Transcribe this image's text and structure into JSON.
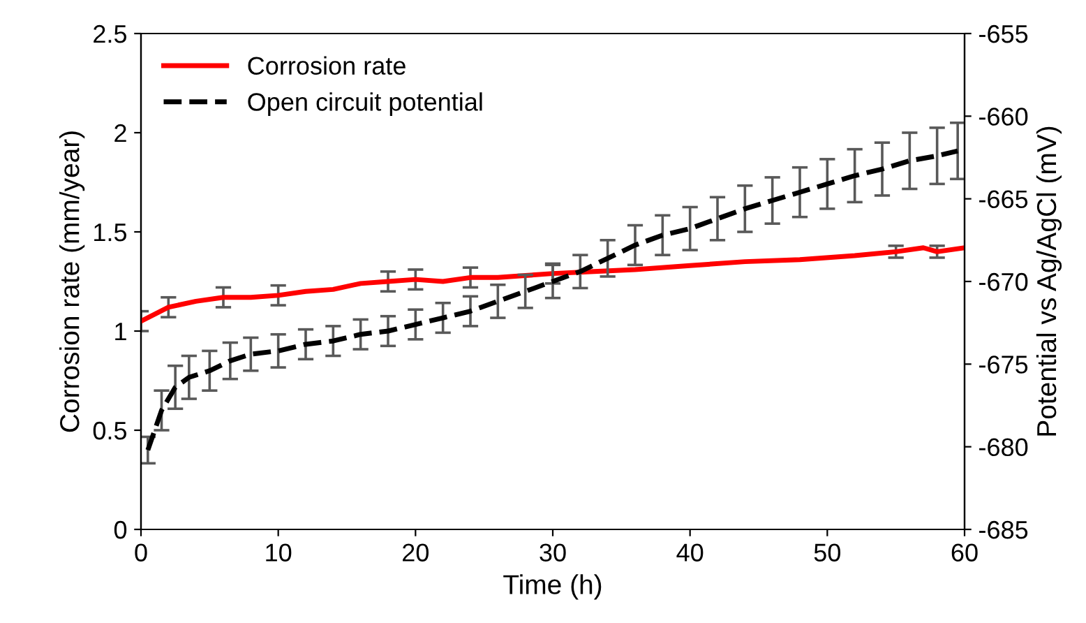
{
  "chart_data": {
    "type": "line",
    "xlabel": "Time (h)",
    "ylabel": "Corrosion rate (mm/year)",
    "y2label": "Potential vs Ag/AgCl (mV)",
    "xlim": [
      0,
      60
    ],
    "xticks": [
      0,
      10,
      20,
      30,
      40,
      50,
      60
    ],
    "ylim": [
      0,
      2.5
    ],
    "yticks": [
      0,
      0.5,
      1,
      1.5,
      2,
      2.5
    ],
    "y2lim": [
      -685,
      -655
    ],
    "y2ticks": [
      -685,
      -680,
      -675,
      -670,
      -665,
      -660,
      -655
    ],
    "legend": "top left",
    "grid": false,
    "series": [
      {
        "name": "Corrosion rate",
        "color": "#ff0000",
        "line_style": "solid",
        "x": [
          0,
          2,
          4,
          6,
          8,
          10,
          12,
          14,
          16,
          18,
          20,
          22,
          24,
          26,
          28,
          30,
          33,
          36,
          40,
          44,
          48,
          52,
          55,
          57,
          58,
          60
        ],
        "values": [
          1.05,
          1.12,
          1.15,
          1.17,
          1.17,
          1.18,
          1.2,
          1.21,
          1.24,
          1.25,
          1.26,
          1.25,
          1.27,
          1.27,
          1.28,
          1.29,
          1.3,
          1.31,
          1.33,
          1.35,
          1.36,
          1.38,
          1.4,
          1.42,
          1.4,
          1.42
        ],
        "errors": [
          0.05,
          0.05,
          null,
          0.05,
          null,
          0.05,
          null,
          null,
          null,
          0.05,
          0.05,
          null,
          0.05,
          null,
          null,
          0.05,
          null,
          null,
          null,
          null,
          null,
          null,
          0.03,
          null,
          0.03,
          null
        ]
      },
      {
        "name": "Open circuit potential",
        "color": "#000000",
        "line_style": "dashed",
        "axis": "y2",
        "x": [
          0.5,
          1.5,
          2.5,
          3.5,
          5,
          6.5,
          8,
          10,
          12,
          14,
          16,
          18,
          20,
          22,
          24,
          26,
          28,
          30,
          32,
          34,
          36,
          38,
          40,
          42,
          44,
          46,
          48,
          50,
          52,
          54,
          56,
          58,
          59.5
        ],
        "values": [
          -680.2,
          -677.8,
          -676.4,
          -675.8,
          -675.4,
          -674.8,
          -674.4,
          -674.2,
          -673.8,
          -673.6,
          -673.2,
          -673.0,
          -672.6,
          -672.2,
          -671.8,
          -671.2,
          -670.6,
          -670.0,
          -669.4,
          -668.6,
          -667.8,
          -667.2,
          -666.8,
          -666.2,
          -665.6,
          -665.1,
          -664.6,
          -664.1,
          -663.6,
          -663.2,
          -662.7,
          -662.4,
          -662.1
        ],
        "errors": [
          0.8,
          1.2,
          1.3,
          1.3,
          1.2,
          1.1,
          1.0,
          1.0,
          0.9,
          0.9,
          0.9,
          0.9,
          0.9,
          0.9,
          0.9,
          1.0,
          1.0,
          1.0,
          1.0,
          1.1,
          1.2,
          1.2,
          1.3,
          1.3,
          1.4,
          1.4,
          1.5,
          1.5,
          1.6,
          1.6,
          1.7,
          1.7,
          1.7
        ]
      }
    ]
  }
}
